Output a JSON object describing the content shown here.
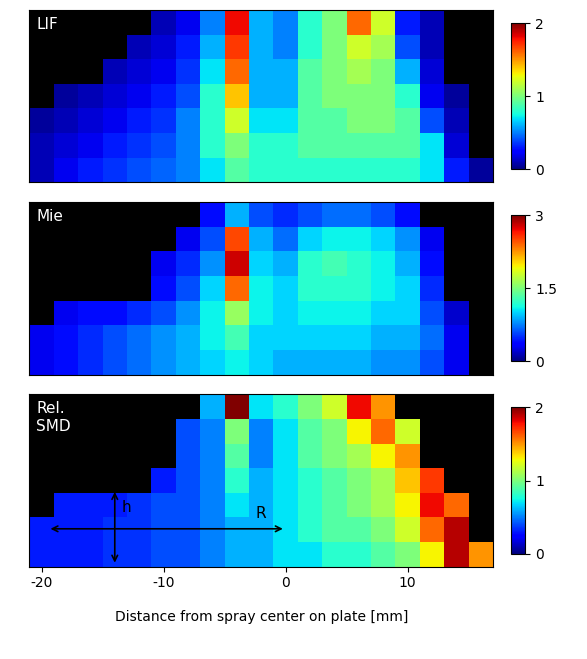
{
  "chart_data": [
    {
      "type": "heatmap",
      "title": "LIF",
      "x": [
        -20,
        -18,
        -16,
        -14,
        -12,
        -10,
        -8,
        -6,
        -4,
        -2,
        0,
        2,
        4,
        6,
        8,
        10,
        12,
        14,
        16
      ],
      "xlim": [
        -21,
        17
      ],
      "tick_labels": false,
      "color_range": [
        0,
        2
      ],
      "color_ticks": [
        0,
        1,
        2
      ],
      "cells": [
        [
          null,
          null,
          null,
          null,
          null,
          0.1,
          0.2,
          0.5,
          1.8,
          0.6,
          0.5,
          0.8,
          1.0,
          1.6,
          1.2,
          0.3,
          0.1,
          null,
          null
        ],
        [
          null,
          null,
          null,
          null,
          0.1,
          0.15,
          0.3,
          0.6,
          1.7,
          0.6,
          0.5,
          0.8,
          1.0,
          1.2,
          1.1,
          0.4,
          0.1,
          null,
          null
        ],
        [
          null,
          null,
          null,
          0.1,
          0.15,
          0.2,
          0.35,
          0.7,
          1.6,
          0.6,
          0.6,
          0.9,
          1.0,
          1.1,
          1.0,
          0.6,
          0.15,
          null,
          null
        ],
        [
          null,
          0.05,
          0.1,
          0.15,
          0.2,
          0.3,
          0.4,
          0.8,
          1.4,
          0.6,
          0.6,
          0.9,
          1.0,
          1.0,
          1.0,
          0.8,
          0.2,
          0.05,
          null
        ],
        [
          0.05,
          0.1,
          0.15,
          0.2,
          0.3,
          0.35,
          0.5,
          0.8,
          1.2,
          0.7,
          0.7,
          0.9,
          0.9,
          1.0,
          1.0,
          0.9,
          0.4,
          0.1,
          null
        ],
        [
          0.1,
          0.15,
          0.2,
          0.3,
          0.35,
          0.4,
          0.5,
          0.8,
          1.0,
          0.8,
          0.8,
          0.9,
          0.9,
          0.9,
          0.9,
          0.9,
          0.7,
          0.15,
          null
        ],
        [
          0.1,
          0.2,
          0.3,
          0.35,
          0.4,
          0.45,
          0.5,
          0.7,
          0.9,
          0.8,
          0.8,
          0.8,
          0.8,
          0.8,
          0.8,
          0.8,
          0.7,
          0.3,
          0.05
        ]
      ]
    },
    {
      "type": "heatmap",
      "title": "Mie",
      "x": [
        -20,
        -18,
        -16,
        -14,
        -12,
        -10,
        -8,
        -6,
        -4,
        -2,
        0,
        2,
        4,
        6,
        8,
        10,
        12,
        14,
        16
      ],
      "xlim": [
        -21,
        17
      ],
      "tick_labels": false,
      "color_range": [
        0,
        3
      ],
      "color_ticks": [
        0,
        1.5,
        3
      ],
      "cells": [
        [
          null,
          null,
          null,
          null,
          null,
          null,
          null,
          0.4,
          0.9,
          0.6,
          0.5,
          0.6,
          0.7,
          0.7,
          0.6,
          0.4,
          null,
          null,
          null
        ],
        [
          null,
          null,
          null,
          null,
          null,
          null,
          0.3,
          0.6,
          2.5,
          0.9,
          0.7,
          1.0,
          1.1,
          1.1,
          1.0,
          0.8,
          0.3,
          null,
          null
        ],
        [
          null,
          null,
          null,
          null,
          null,
          0.3,
          0.5,
          0.8,
          2.8,
          1.0,
          0.9,
          1.2,
          1.3,
          1.2,
          1.1,
          0.9,
          0.4,
          null,
          null
        ],
        [
          null,
          null,
          null,
          null,
          null,
          0.4,
          0.6,
          1.0,
          2.4,
          1.1,
          1.0,
          1.2,
          1.2,
          1.2,
          1.1,
          1.0,
          0.5,
          null,
          null
        ],
        [
          null,
          0.3,
          0.4,
          0.4,
          0.5,
          0.6,
          0.8,
          1.1,
          1.6,
          1.1,
          1.0,
          1.1,
          1.1,
          1.1,
          1.0,
          1.0,
          0.6,
          0.2,
          null
        ],
        [
          0.3,
          0.4,
          0.5,
          0.6,
          0.7,
          0.8,
          0.9,
          1.1,
          1.3,
          1.0,
          1.0,
          1.0,
          1.0,
          1.0,
          0.9,
          0.9,
          0.7,
          0.3,
          null
        ],
        [
          0.3,
          0.4,
          0.5,
          0.6,
          0.7,
          0.8,
          0.9,
          1.0,
          1.1,
          1.0,
          0.9,
          0.9,
          0.9,
          0.9,
          0.8,
          0.8,
          0.6,
          0.3,
          null
        ]
      ]
    },
    {
      "type": "heatmap",
      "title": "Rel.\nSMD",
      "x": [
        -20,
        -18,
        -16,
        -14,
        -12,
        -10,
        -8,
        -6,
        -4,
        -2,
        0,
        2,
        4,
        6,
        8,
        10,
        12,
        14,
        16
      ],
      "xlim": [
        -21,
        17
      ],
      "xticks": [
        -20,
        -10,
        0,
        10
      ],
      "tick_labels": "x",
      "x_label": "Distance from spray center on plate [mm]",
      "annotations": [
        "h",
        "R"
      ],
      "color_range": [
        0,
        2
      ],
      "color_ticks": [
        0,
        1,
        2
      ],
      "cells": [
        [
          null,
          null,
          null,
          null,
          null,
          null,
          null,
          0.6,
          2.0,
          0.7,
          0.8,
          1.0,
          1.2,
          1.8,
          1.5,
          null,
          null,
          null,
          null
        ],
        [
          null,
          null,
          null,
          null,
          null,
          null,
          0.4,
          0.5,
          1.0,
          0.5,
          0.7,
          0.9,
          1.0,
          1.3,
          1.6,
          1.2,
          null,
          null,
          null
        ],
        [
          null,
          null,
          null,
          null,
          null,
          null,
          0.4,
          0.5,
          0.9,
          0.5,
          0.7,
          0.9,
          1.0,
          1.1,
          1.3,
          1.5,
          null,
          null,
          null
        ],
        [
          null,
          null,
          null,
          null,
          null,
          0.3,
          0.4,
          0.5,
          0.8,
          0.6,
          0.7,
          0.8,
          0.9,
          1.0,
          1.1,
          1.4,
          1.7,
          null,
          null
        ],
        [
          null,
          0.3,
          0.3,
          0.3,
          0.35,
          0.4,
          0.4,
          0.5,
          0.7,
          0.6,
          0.7,
          0.8,
          0.9,
          1.0,
          1.1,
          1.3,
          1.8,
          1.6,
          null
        ],
        [
          0.3,
          0.3,
          0.3,
          0.35,
          0.35,
          0.4,
          0.4,
          0.5,
          0.6,
          0.6,
          0.7,
          0.8,
          0.9,
          0.9,
          1.0,
          1.2,
          1.6,
          1.9,
          null
        ],
        [
          0.3,
          0.3,
          0.3,
          0.35,
          0.35,
          0.4,
          0.4,
          0.5,
          0.6,
          0.6,
          0.7,
          0.7,
          0.8,
          0.8,
          0.9,
          1.0,
          1.3,
          1.9,
          1.5
        ]
      ]
    }
  ]
}
